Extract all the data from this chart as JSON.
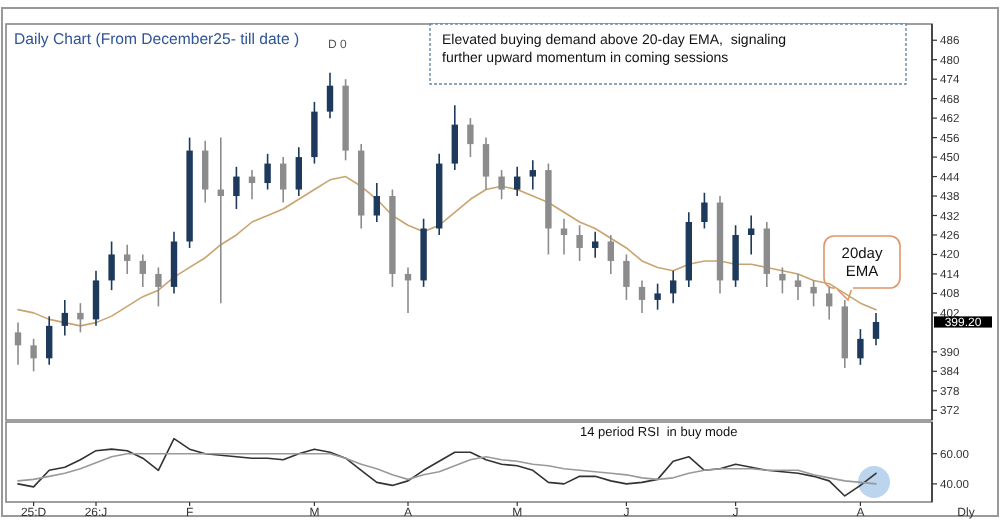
{
  "chart_data": [
    {
      "type": "candlestick",
      "title": "Daily Chart (From December25- till date )",
      "categories": [
        null,
        null,
        null,
        null,
        null,
        null,
        null,
        null,
        null,
        null,
        null,
        null,
        null,
        null,
        null,
        null,
        null,
        null,
        null,
        null,
        null,
        null,
        null,
        null,
        null,
        null,
        null,
        null,
        null,
        null,
        null,
        null,
        null,
        null,
        null,
        null,
        null,
        null,
        null,
        null,
        null,
        null,
        null,
        null,
        null,
        null,
        null,
        null,
        null,
        null,
        null,
        null,
        null,
        null,
        null,
        null
      ],
      "ohlc": [
        [
          396,
          399,
          386,
          392
        ],
        [
          392,
          394,
          384,
          388
        ],
        [
          388,
          401,
          386,
          398
        ],
        [
          398,
          406,
          395,
          402
        ],
        [
          402,
          405,
          396,
          400
        ],
        [
          400,
          415,
          398,
          412
        ],
        [
          412,
          424,
          409,
          420
        ],
        [
          420,
          423,
          414,
          418
        ],
        [
          418,
          420,
          410,
          414
        ],
        [
          414,
          416,
          404,
          410
        ],
        [
          410,
          427,
          408,
          424
        ],
        [
          424,
          456,
          422,
          452
        ],
        [
          452,
          455,
          436,
          440
        ],
        [
          440,
          456,
          405,
          438
        ],
        [
          438,
          447,
          434,
          444
        ],
        [
          444,
          446,
          437,
          442
        ],
        [
          442,
          451,
          440,
          448
        ],
        [
          448,
          450,
          436,
          440
        ],
        [
          440,
          453,
          438,
          450
        ],
        [
          450,
          467,
          448,
          464
        ],
        [
          464,
          476,
          462,
          472
        ],
        [
          472,
          474,
          449,
          452
        ],
        [
          452,
          454,
          428,
          432
        ],
        [
          432,
          442,
          430,
          438
        ],
        [
          438,
          440,
          410,
          414
        ],
        [
          414,
          416,
          402,
          412
        ],
        [
          412,
          431,
          410,
          428
        ],
        [
          428,
          451,
          426,
          448
        ],
        [
          448,
          466,
          446,
          460
        ],
        [
          460,
          462,
          450,
          454
        ],
        [
          454,
          456,
          440,
          444
        ],
        [
          444,
          446,
          437,
          440
        ],
        [
          440,
          447,
          438,
          444
        ],
        [
          444,
          449,
          440,
          446
        ],
        [
          446,
          448,
          420,
          428
        ],
        [
          428,
          431,
          420,
          426
        ],
        [
          426,
          429,
          418,
          422
        ],
        [
          422,
          427,
          419,
          424
        ],
        [
          424,
          426,
          414,
          418
        ],
        [
          418,
          420,
          406,
          410
        ],
        [
          410,
          412,
          402,
          406
        ],
        [
          406,
          411,
          403,
          408
        ],
        [
          408,
          415,
          405,
          412
        ],
        [
          412,
          433,
          410,
          430
        ],
        [
          430,
          439,
          428,
          436
        ],
        [
          436,
          438,
          408,
          412
        ],
        [
          412,
          429,
          410,
          426
        ],
        [
          426,
          432,
          420,
          428
        ],
        [
          428,
          430,
          410,
          414
        ],
        [
          414,
          416,
          408,
          412
        ],
        [
          412,
          414,
          406,
          410
        ],
        [
          410,
          412,
          404,
          408
        ],
        [
          408,
          410,
          400,
          404
        ],
        [
          404,
          406,
          385,
          388
        ],
        [
          388,
          397,
          386,
          394
        ],
        [
          394,
          402,
          392,
          399.2
        ]
      ],
      "colors": [
        "#8c8c8c",
        "#8c8c8c",
        "#1d3a5c",
        "#1d3a5c",
        "#8c8c8c",
        "#1d3a5c",
        "#1d3a5c",
        "#8c8c8c",
        "#8c8c8c",
        "#8c8c8c",
        "#1d3a5c",
        "#1d3a5c",
        "#8c8c8c",
        "#8c8c8c",
        "#1d3a5c",
        "#8c8c8c",
        "#1d3a5c",
        "#8c8c8c",
        "#1d3a5c",
        "#1d3a5c",
        "#1d3a5c",
        "#8c8c8c",
        "#8c8c8c",
        "#1d3a5c",
        "#8c8c8c",
        "#8c8c8c",
        "#1d3a5c",
        "#1d3a5c",
        "#1d3a5c",
        "#8c8c8c",
        "#8c8c8c",
        "#8c8c8c",
        "#1d3a5c",
        "#1d3a5c",
        "#8c8c8c",
        "#8c8c8c",
        "#8c8c8c",
        "#1d3a5c",
        "#8c8c8c",
        "#8c8c8c",
        "#8c8c8c",
        "#1d3a5c",
        "#1d3a5c",
        "#1d3a5c",
        "#1d3a5c",
        "#8c8c8c",
        "#1d3a5c",
        "#1d3a5c",
        "#8c8c8c",
        "#8c8c8c",
        "#8c8c8c",
        "#8c8c8c",
        "#8c8c8c",
        "#8c8c8c",
        "#1d3a5c",
        "#1d3a5c"
      ],
      "series": [
        {
          "type": "line",
          "color": "#c9a46e",
          "values": [
            403,
            402,
            400,
            399,
            398,
            399,
            401,
            404,
            407,
            409,
            413,
            416,
            419,
            423,
            426,
            430,
            432,
            434,
            437,
            440,
            443,
            444,
            441,
            437,
            432,
            429,
            427,
            429,
            433,
            437,
            440,
            441,
            440,
            438,
            436,
            433,
            430,
            428,
            425,
            422,
            418,
            416,
            415,
            417,
            418,
            418,
            417,
            417,
            416,
            415,
            414,
            412,
            411,
            408,
            405,
            403
          ]
        }
      ],
      "ylim": [
        369,
        491
      ],
      "yticks": [
        486,
        480,
        474,
        468,
        462,
        456,
        450,
        444,
        438,
        432,
        426,
        420,
        414,
        408,
        402,
        390,
        384,
        378,
        372
      ],
      "tick_labels": "y",
      "annotations": [
        "Elevated buying demand above 20-day EMA,  signaling further upward momentum in coming sessions",
        "D 0",
        "20day EMA",
        "399.20"
      ]
    },
    {
      "type": "line",
      "categories": [
        null,
        "25:D",
        null,
        null,
        null,
        "26:J",
        null,
        null,
        null,
        null,
        null,
        "F",
        null,
        null,
        null,
        null,
        null,
        null,
        null,
        "M",
        null,
        null,
        null,
        null,
        null,
        "A",
        null,
        null,
        null,
        null,
        null,
        null,
        "M",
        null,
        null,
        null,
        null,
        null,
        null,
        "J",
        null,
        null,
        null,
        null,
        null,
        null,
        "J",
        null,
        null,
        null,
        null,
        null,
        null,
        null,
        "A",
        null
      ],
      "series": [
        {
          "color": "#333333",
          "values": [
            40,
            38,
            49,
            51,
            56,
            62,
            63,
            62,
            57,
            49,
            70,
            63,
            60,
            59,
            58,
            57,
            57,
            56,
            60,
            63,
            61,
            57,
            49,
            41,
            39,
            42,
            49,
            55,
            61,
            61,
            56,
            53,
            52,
            49,
            41,
            40,
            45,
            45,
            42,
            40,
            41,
            43,
            55,
            58,
            49,
            50,
            53,
            51,
            49,
            48,
            47,
            45,
            42,
            32,
            39,
            47
          ]
        },
        {
          "color": "#999999",
          "values": [
            42,
            43,
            45,
            47,
            50,
            54,
            58,
            60,
            60,
            60,
            60,
            60,
            60,
            60,
            60,
            60,
            60,
            60,
            60,
            60,
            60,
            57,
            53,
            50,
            46,
            43,
            46,
            48,
            52,
            56,
            58,
            56,
            55,
            53,
            52,
            50,
            49,
            48,
            47,
            46,
            44,
            43,
            44,
            47,
            49,
            50,
            50,
            50,
            49,
            49,
            49,
            46,
            44,
            42,
            41,
            40
          ]
        }
      ],
      "ylim": [
        28,
        81
      ],
      "yticks": [
        {
          "value": 60,
          "label": "60.00"
        },
        {
          "value": 40,
          "label": "40.00"
        }
      ],
      "xlabel": "Dly",
      "annotations": [
        "14 period RSI  in buy mode"
      ]
    }
  ]
}
